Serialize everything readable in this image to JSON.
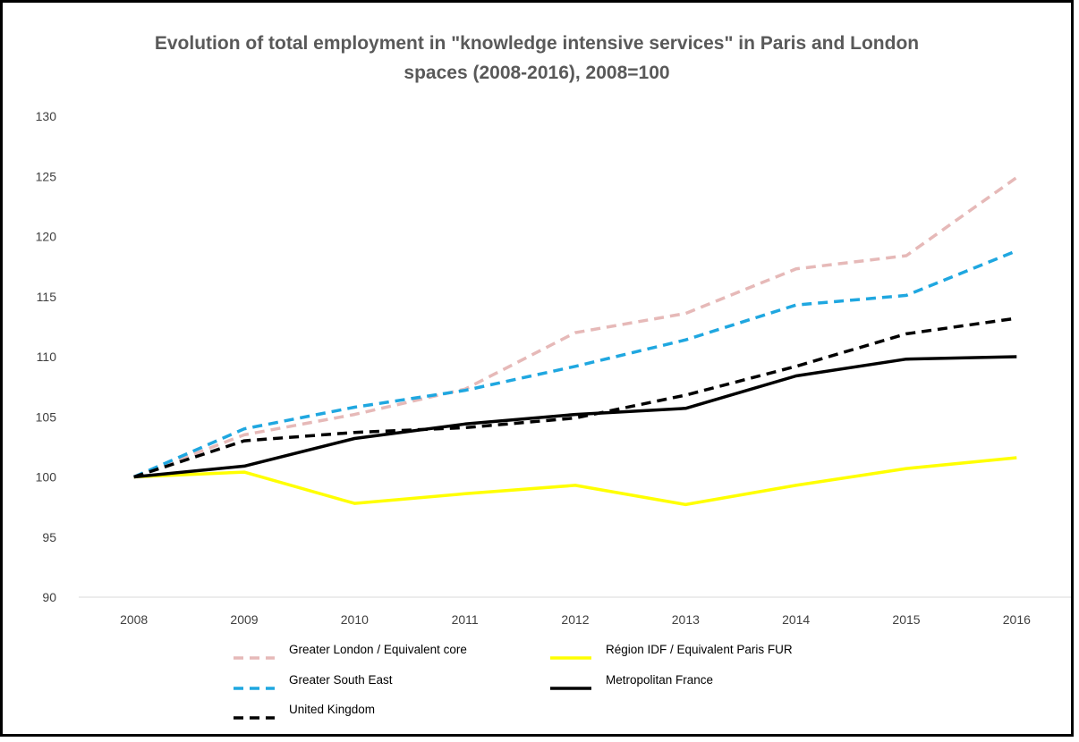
{
  "chart_data": {
    "type": "line",
    "title_line1": "Evolution of total employment in \"knowledge intensive services\" in Paris and London",
    "title_line2": "spaces (2008-2016), 2008=100",
    "xlabel": "",
    "ylabel": "",
    "x": [
      "2008",
      "2009",
      "2010",
      "2011",
      "2012",
      "2013",
      "2014",
      "2015",
      "2016"
    ],
    "ylim": [
      90,
      130
    ],
    "yticks": [
      90,
      95,
      100,
      105,
      110,
      115,
      120,
      125,
      130
    ],
    "grid": "horizontal baseline only",
    "legend_placement": "bottom",
    "series": [
      {
        "name": "Greater London / Equivalent core",
        "color": "#e6b9b8",
        "dash": "dashed",
        "values": [
          100,
          103.5,
          105.2,
          107.3,
          112.0,
          113.6,
          117.3,
          118.4,
          124.9
        ]
      },
      {
        "name": "Région IDF / Equivalent Paris FUR",
        "color": "#ffff00",
        "dash": "solid",
        "values": [
          100,
          100.4,
          97.8,
          98.6,
          99.3,
          97.7,
          99.3,
          100.7,
          101.6
        ]
      },
      {
        "name": "Greater South East",
        "color": "#1fa7e0",
        "dash": "dashed",
        "values": [
          100,
          104.0,
          105.8,
          107.2,
          109.2,
          111.4,
          114.3,
          115.1,
          118.8
        ]
      },
      {
        "name": "Metropolitan France",
        "color": "#000000",
        "dash": "solid",
        "values": [
          100,
          100.9,
          103.2,
          104.4,
          105.2,
          105.7,
          108.4,
          109.8,
          110.0
        ]
      },
      {
        "name": "United Kingdom",
        "color": "#000000",
        "dash": "dashed",
        "values": [
          100,
          103.0,
          103.7,
          104.1,
          104.9,
          106.8,
          109.2,
          111.9,
          113.2
        ]
      }
    ]
  }
}
